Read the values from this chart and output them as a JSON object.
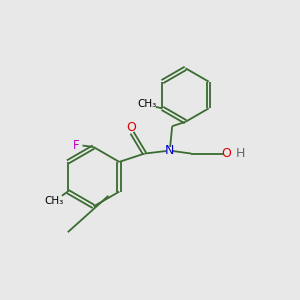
{
  "background_color": "#e8e8e8",
  "bond_color": "#3a6b30",
  "atom_colors": {
    "O": "#dd0000",
    "N": "#0000cc",
    "F": "#bb00bb",
    "H": "#666666",
    "C": "#000000"
  },
  "figsize": [
    3.0,
    3.0
  ],
  "dpi": 100
}
